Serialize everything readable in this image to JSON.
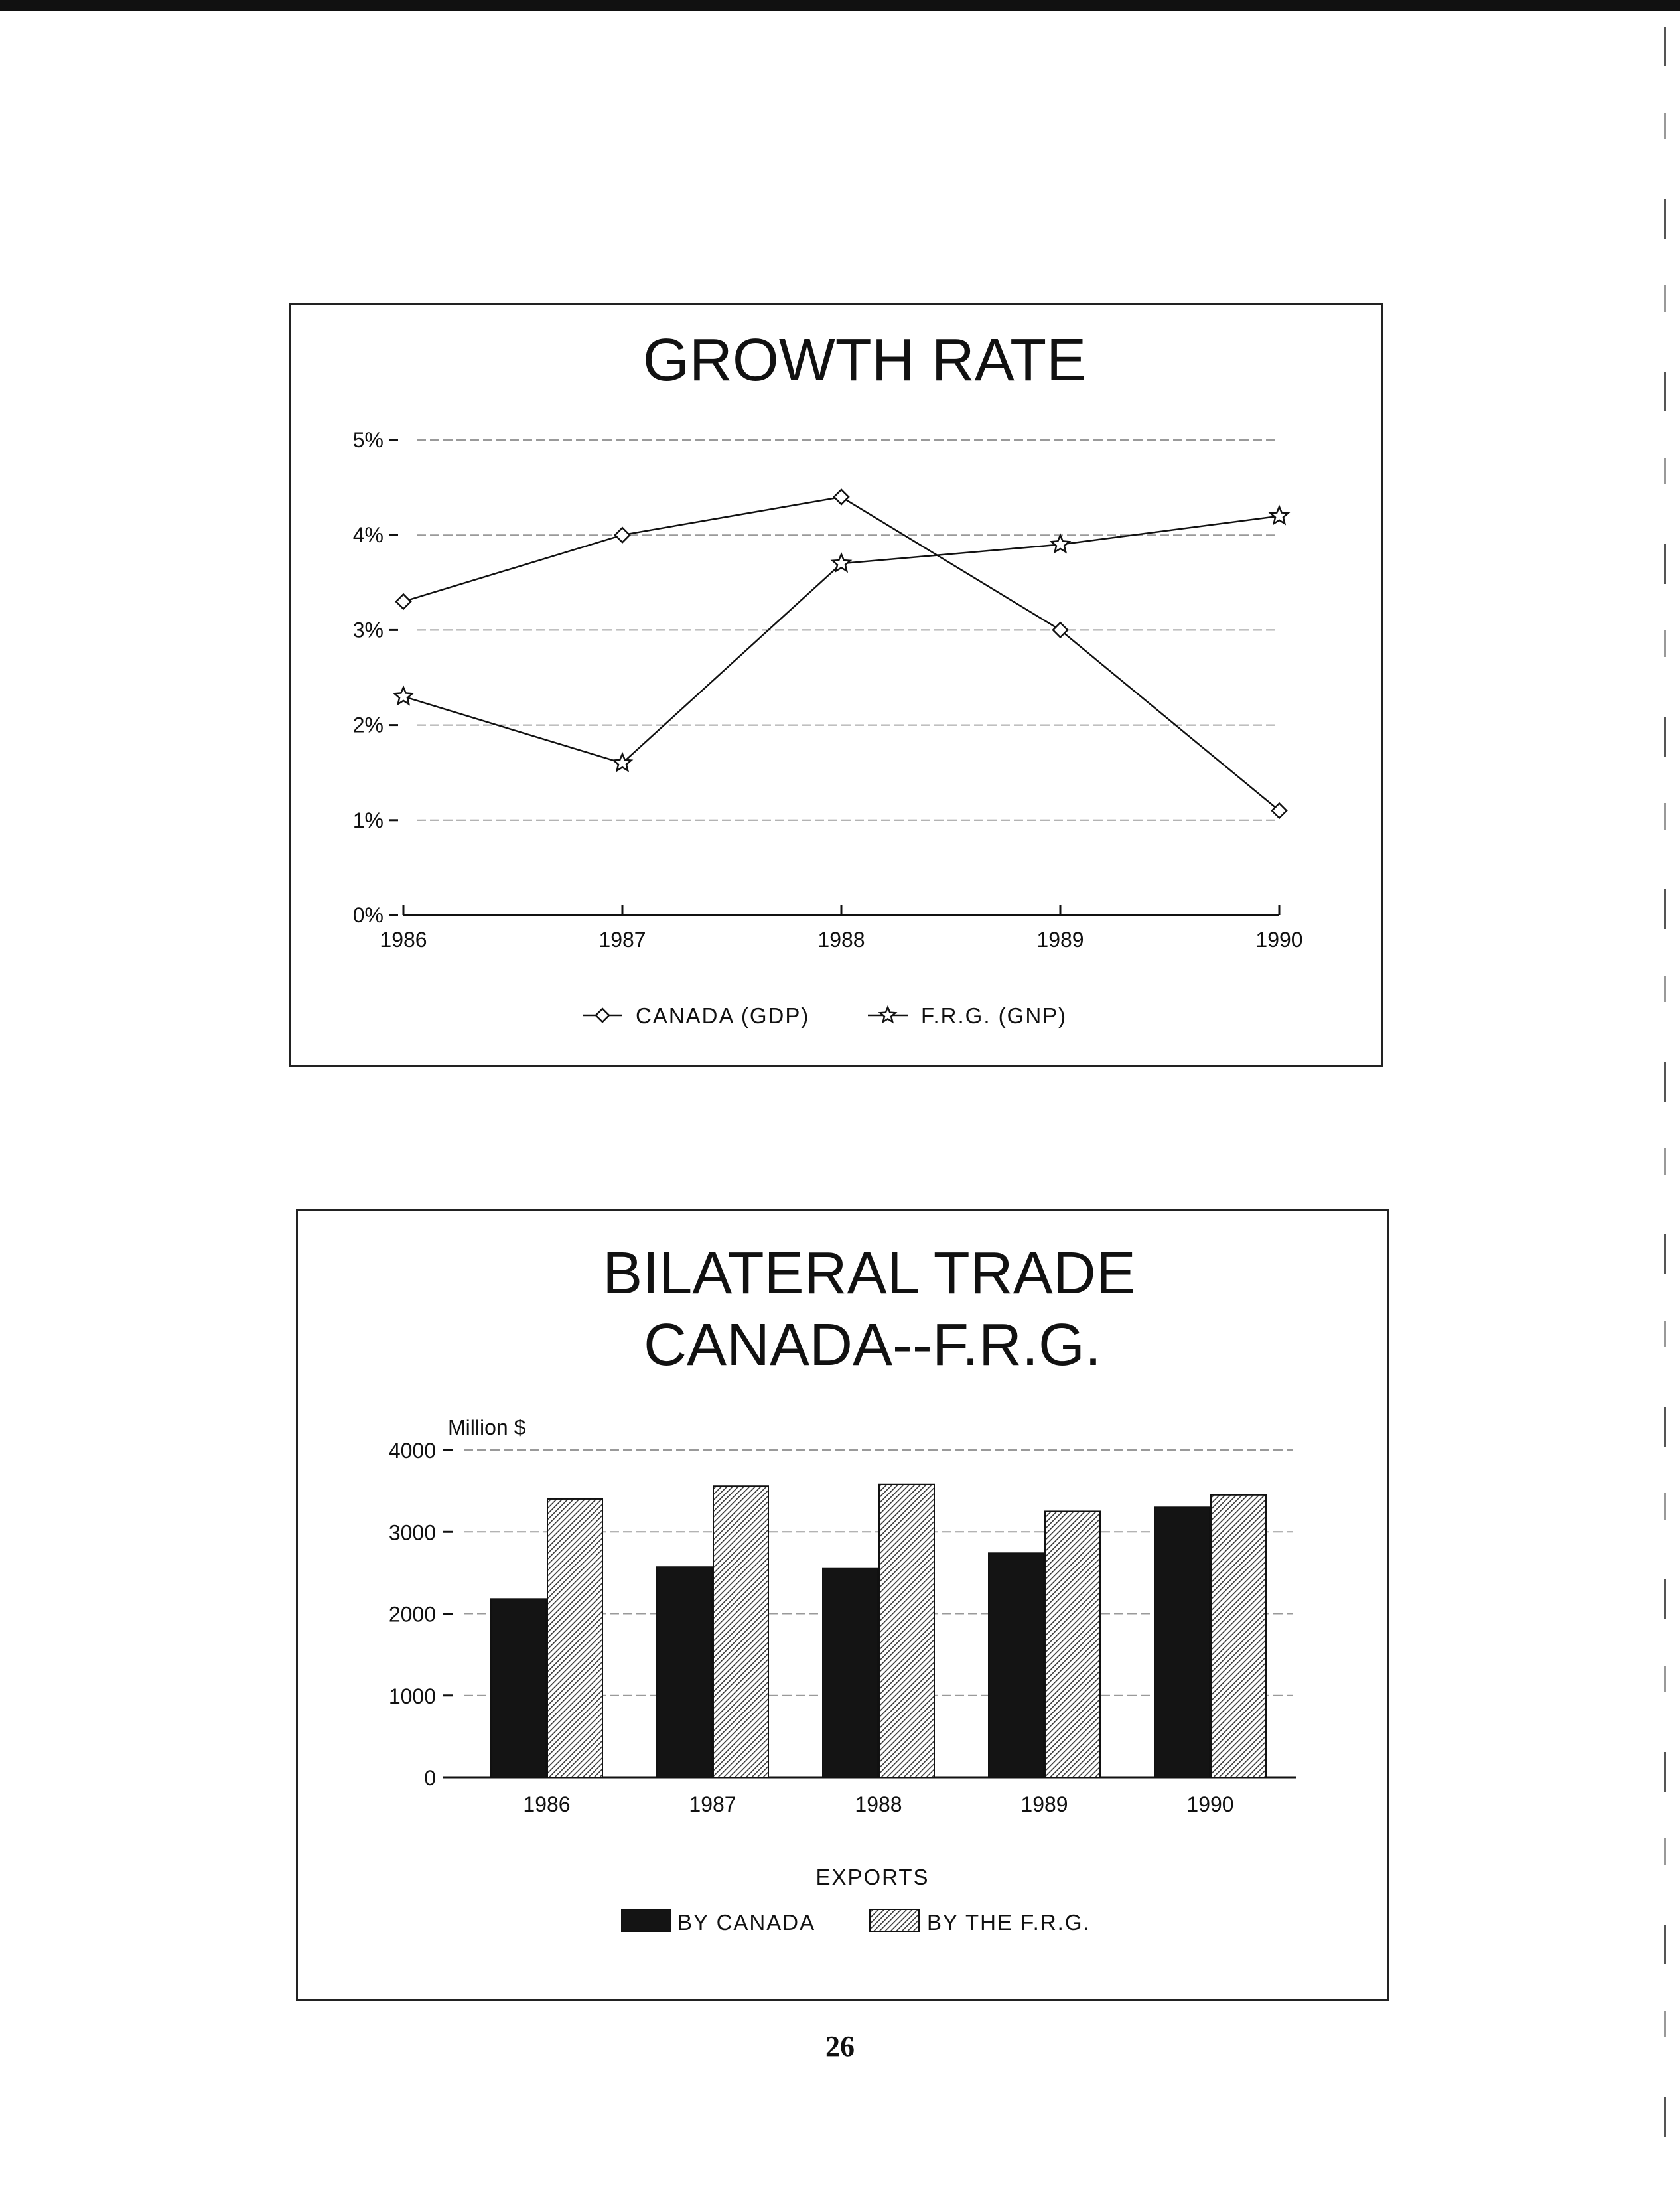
{
  "page_number": "26",
  "colors": {
    "ink": "#111111",
    "grid": "#9a9a9a",
    "bar_dark": "#141414",
    "bar_hatch": "#9c9c9c"
  },
  "chart_data": [
    {
      "type": "line",
      "title": "GROWTH RATE",
      "x": [
        "1986",
        "1987",
        "1988",
        "1989",
        "1990"
      ],
      "y_ticks": [
        "0%",
        "1%",
        "2%",
        "3%",
        "4%",
        "5%"
      ],
      "ylim": [
        0,
        5
      ],
      "grid": true,
      "legend_position": "bottom",
      "series": [
        {
          "name": "CANADA (GDP)",
          "marker": "diamond",
          "values": [
            3.3,
            4.0,
            4.4,
            3.0,
            1.1
          ]
        },
        {
          "name": "F.R.G. (GNP)",
          "marker": "star",
          "values": [
            2.3,
            1.6,
            3.7,
            3.9,
            4.2
          ]
        }
      ]
    },
    {
      "type": "bar",
      "title": [
        "BILATERAL TRADE",
        "CANADA--F.R.G."
      ],
      "ylabel": "Million $",
      "categories": [
        "1986",
        "1987",
        "1988",
        "1989",
        "1990"
      ],
      "y_ticks": [
        "0",
        "1000",
        "2000",
        "3000",
        "4000"
      ],
      "ylim": [
        0,
        4000
      ],
      "grid": true,
      "legend_title": "EXPORTS",
      "legend_position": "bottom",
      "series": [
        {
          "name": "BY CANADA",
          "fill": "solid-dark",
          "values": [
            2180,
            2570,
            2550,
            2740,
            3300
          ]
        },
        {
          "name": "BY THE F.R.G.",
          "fill": "hatched",
          "values": [
            3400,
            3560,
            3580,
            3250,
            3450
          ]
        }
      ]
    }
  ]
}
